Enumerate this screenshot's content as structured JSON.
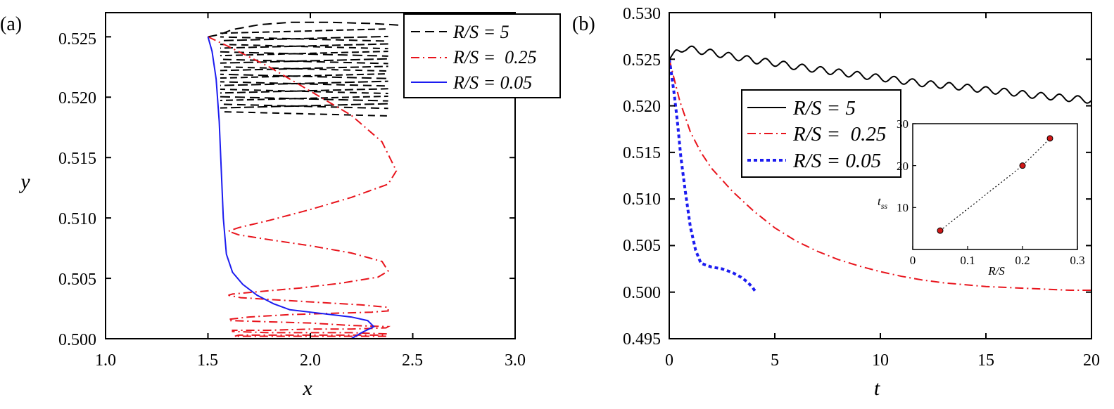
{
  "chart_data": [
    {
      "panel_label": "(a)",
      "type": "line",
      "xlabel": "x",
      "ylabel": "y",
      "xlim": [
        1.0,
        3.0
      ],
      "ylim": [
        0.5,
        0.527
      ],
      "xticks": [
        "1.0",
        "1.5",
        "2.0",
        "2.5",
        "3.0"
      ],
      "yticks": [
        "0.500",
        "0.505",
        "0.510",
        "0.515",
        "0.520",
        "0.525"
      ],
      "legend_position": "top-right",
      "legend": [
        "R/S = 5",
        "R/S =  0.25",
        "R/S = 0.05"
      ],
      "series": [
        {
          "name": "R/S = 5",
          "style": "dashed",
          "color": "#000000",
          "x": [
            1.5,
            1.56,
            1.62,
            1.75,
            1.9,
            2.1,
            2.3,
            2.5,
            2.7
          ],
          "y": [
            0.525,
            0.5252,
            0.5256,
            0.526,
            0.5262,
            0.5262,
            0.5261,
            0.5259,
            0.5257
          ],
          "band": {
            "x_range": [
              1.56,
              2.38
            ],
            "y_top": 0.5253,
            "y_bottom": 0.5188,
            "line_count": 22
          }
        },
        {
          "name": "R/S =  0.25",
          "style": "dash-dot",
          "color": "#e8141c",
          "x": [
            1.5,
            1.6,
            1.8,
            2.0,
            2.2,
            2.35,
            2.42,
            2.38,
            2.2,
            2.0,
            1.8,
            1.65,
            1.6,
            1.65,
            1.8,
            2.0,
            2.2,
            2.35,
            2.38,
            2.33,
            2.15,
            1.95,
            1.75,
            1.62,
            1.6,
            1.66,
            1.85,
            2.05,
            2.25,
            2.38,
            2.38,
            2.3,
            2.1,
            1.9,
            1.7,
            1.6,
            1.61,
            1.8,
            2.0,
            2.2,
            2.38,
            2.37,
            2.2,
            2.0,
            1.8,
            1.62,
            1.62,
            1.8,
            2.0,
            2.2,
            2.37,
            2.37,
            2.15,
            1.9,
            1.65,
            1.63,
            1.85,
            2.1,
            2.38
          ],
          "y": [
            0.525,
            0.5242,
            0.5225,
            0.5205,
            0.5185,
            0.5163,
            0.5139,
            0.5128,
            0.5117,
            0.5107,
            0.5098,
            0.5092,
            0.5089,
            0.5086,
            0.5082,
            0.5077,
            0.5071,
            0.5064,
            0.5056,
            0.5051,
            0.5046,
            0.5042,
            0.5039,
            0.5037,
            0.5036,
            0.5034,
            0.5032,
            0.503,
            0.5028,
            0.5026,
            0.5023,
            0.5022,
            0.5021,
            0.502,
            0.5018,
            0.5016,
            0.5015,
            0.5014,
            0.5013,
            0.5011,
            0.501,
            0.5009,
            0.5008,
            0.5008,
            0.5007,
            0.5007,
            0.5006,
            0.5005,
            0.5005,
            0.5005,
            0.5004,
            0.5003,
            0.5003,
            0.5003,
            0.5003,
            0.5002,
            0.5002,
            0.5002,
            0.5002
          ]
        },
        {
          "name": "R/S = 0.05",
          "style": "solid",
          "color": "#1c1cf0",
          "x": [
            1.5,
            1.52,
            1.54,
            1.555,
            1.565,
            1.575,
            1.59,
            1.62,
            1.67,
            1.74,
            1.82,
            1.9,
            2.0,
            2.1,
            2.2,
            2.28,
            2.31,
            2.25,
            2.2
          ],
          "y": [
            0.525,
            0.5238,
            0.5215,
            0.518,
            0.514,
            0.51,
            0.507,
            0.5055,
            0.5045,
            0.5036,
            0.5029,
            0.5024,
            0.5022,
            0.502,
            0.5018,
            0.5015,
            0.501,
            0.5005,
            0.5
          ]
        }
      ]
    },
    {
      "panel_label": "(b)",
      "type": "line",
      "xlabel": "t",
      "ylabel": "",
      "xlim": [
        0,
        20
      ],
      "ylim": [
        0.495,
        0.53
      ],
      "xticks": [
        "0",
        "5",
        "10",
        "15",
        "20"
      ],
      "yticks": [
        "0.495",
        "0.500",
        "0.505",
        "0.510",
        "0.515",
        "0.520",
        "0.525",
        "0.530"
      ],
      "legend_position": "upper-center",
      "legend": [
        "R/S = 5",
        "R/S =  0.25",
        "R/S = 0.05"
      ],
      "series": [
        {
          "name": "R/S = 5",
          "style": "solid",
          "color": "#000000",
          "x": [
            0,
            0.3,
            0.7,
            1.2,
            2,
            3,
            4,
            5,
            6,
            7,
            8,
            9,
            10,
            11,
            12,
            13,
            14,
            15,
            16,
            17,
            18,
            19,
            20
          ],
          "y": [
            0.525,
            0.5258,
            0.5262,
            0.526,
            0.5257,
            0.5253,
            0.5249,
            0.5246,
            0.5242,
            0.5239,
            0.5236,
            0.5233,
            0.523,
            0.5227,
            0.5224,
            0.5222,
            0.522,
            0.5217,
            0.5215,
            0.5212,
            0.521,
            0.5208,
            0.5206
          ],
          "oscillation": {
            "amplitude": 0.00035,
            "period": 0.87
          }
        },
        {
          "name": "R/S =  0.25",
          "style": "dash-dot",
          "color": "#e8141c",
          "x": [
            0,
            0.5,
            1,
            1.5,
            2,
            3,
            4,
            5,
            6,
            7,
            8,
            9,
            10,
            11,
            12,
            13,
            14,
            15,
            16,
            17,
            18,
            19,
            20
          ],
          "y": [
            0.525,
            0.5205,
            0.5172,
            0.515,
            0.5133,
            0.5108,
            0.5087,
            0.5069,
            0.5055,
            0.5044,
            0.5035,
            0.5028,
            0.5022,
            0.5017,
            0.5013,
            0.501,
            0.5008,
            0.5006,
            0.5005,
            0.5004,
            0.5003,
            0.5002,
            0.5002
          ]
        },
        {
          "name": "R/S = 0.05",
          "style": "dotted",
          "color": "#1c1cf0",
          "x": [
            0,
            0.1,
            0.25,
            0.4,
            0.55,
            0.75,
            1.0,
            1.25,
            1.5,
            2.0,
            2.5,
            3.0,
            3.4,
            3.7,
            3.95,
            4.1
          ],
          "y": [
            0.525,
            0.5235,
            0.521,
            0.518,
            0.5145,
            0.511,
            0.507,
            0.5045,
            0.5031,
            0.5027,
            0.5025,
            0.5021,
            0.5016,
            0.5011,
            0.5005,
            0.5
          ]
        }
      ],
      "inset": {
        "type": "scatter",
        "xlabel": "R/S",
        "ylabel": "t_ss",
        "xlim": [
          0,
          0.3
        ],
        "ylim": [
          0,
          30
        ],
        "xticks": [
          "0",
          "0.1",
          "0.2",
          "0.3"
        ],
        "yticks": [
          "10",
          "20",
          "30"
        ],
        "points": [
          {
            "x": 0.05,
            "y": 4.5
          },
          {
            "x": 0.2,
            "y": 20.0
          },
          {
            "x": 0.25,
            "y": 26.5
          }
        ],
        "line_style": "dotted",
        "point_color": "#d01818"
      }
    }
  ]
}
